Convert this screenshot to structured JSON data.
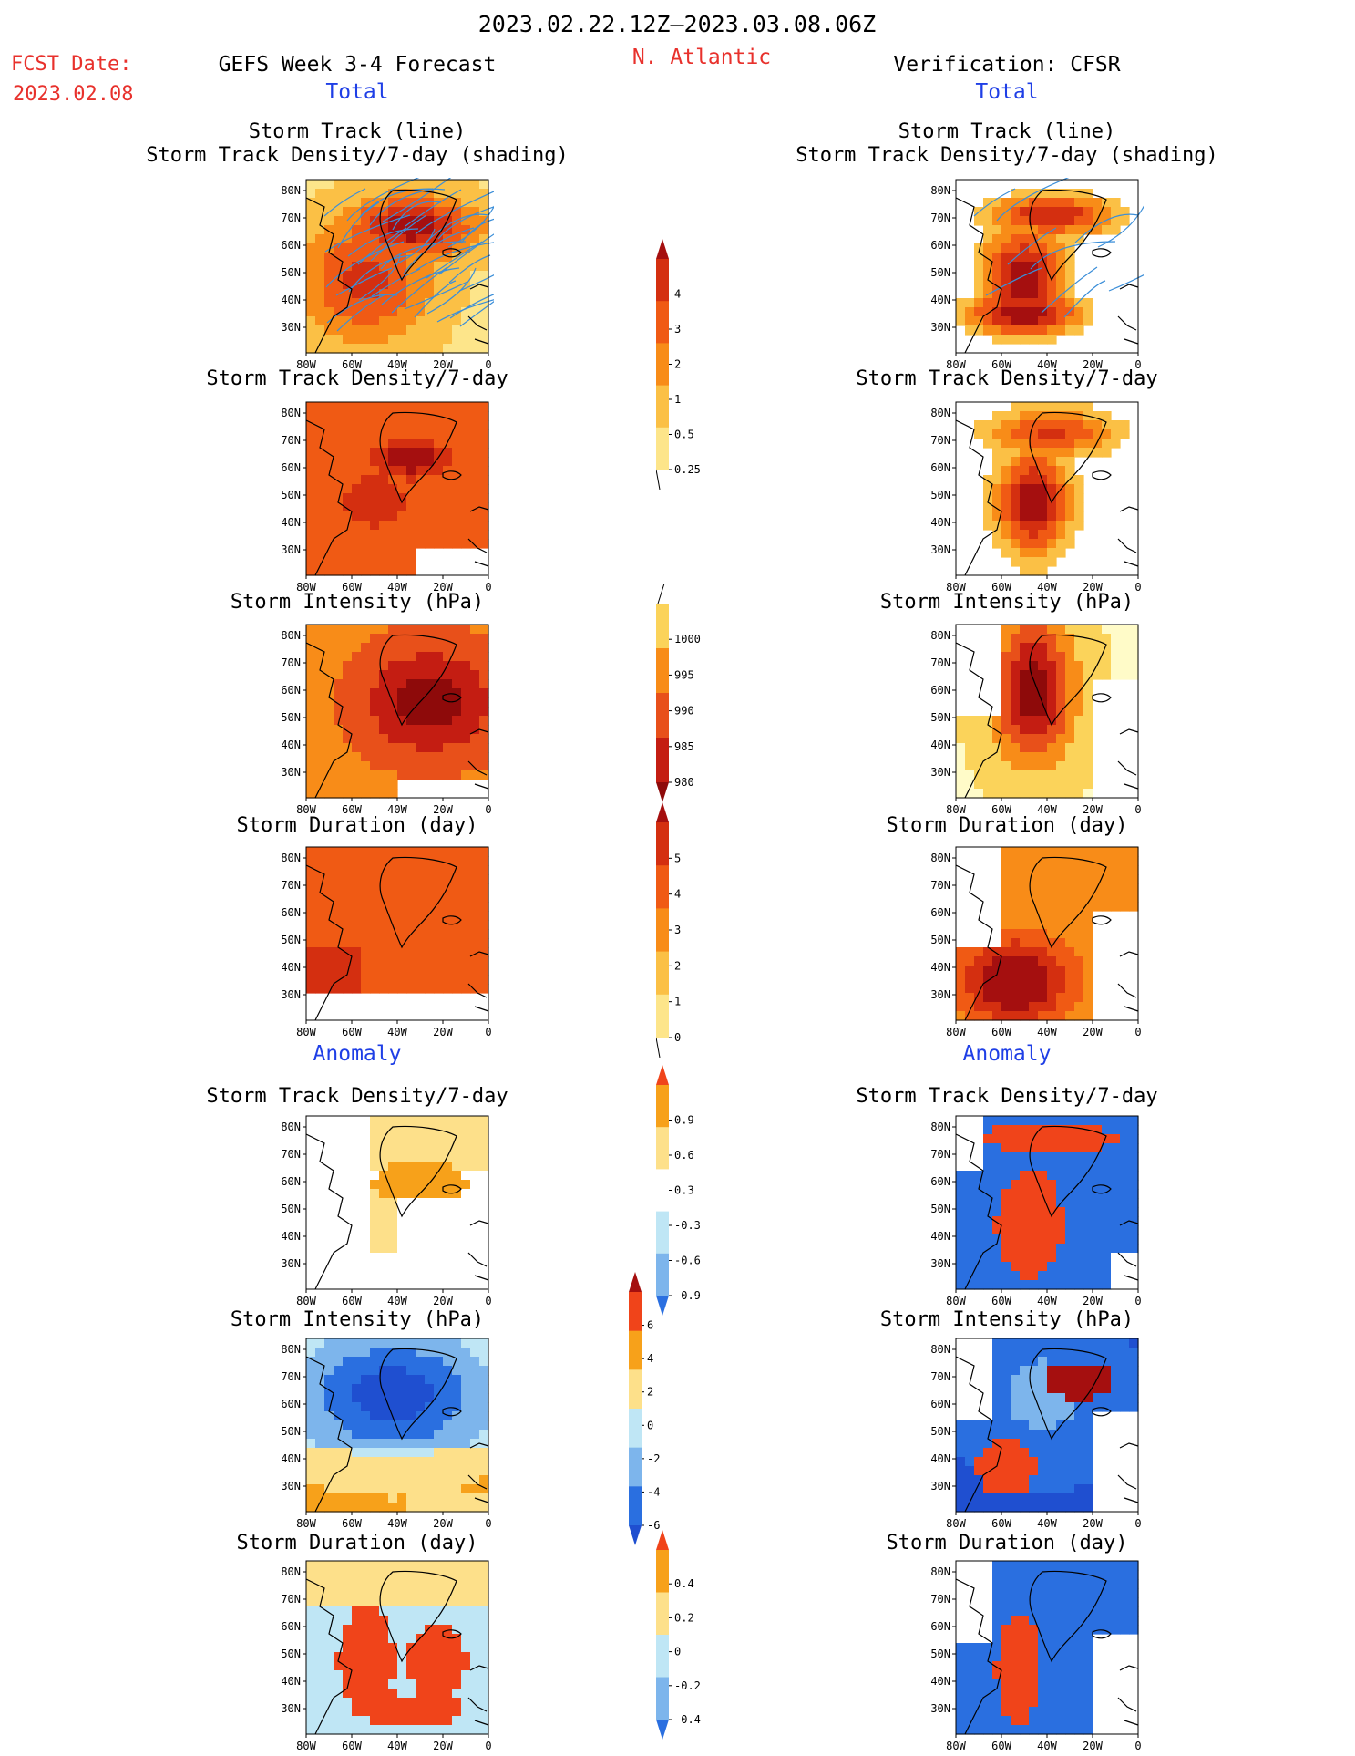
{
  "header": {
    "period": "2023.02.22.12Z–2023.03.08.06Z",
    "fcst_date_label": "FCST Date:",
    "fcst_date_value": "2023.02.08",
    "forecast_title": "GEFS Week 3-4 Forecast",
    "region": "N. Atlantic",
    "verification_title": "Verification: CFSR"
  },
  "sections": {
    "total": "Total",
    "anomaly": "Anomaly"
  },
  "panel_titles": {
    "track_line": "Storm Track (line)",
    "track_shading": "Storm Track Density/7-day (shading)",
    "density": "Storm Track Density/7-day",
    "intensity": "Storm Intensity (hPa)",
    "duration": "Storm Duration (day)"
  },
  "axes": {
    "lat_ticks": [
      "80N",
      "70N",
      "60N",
      "50N",
      "40N",
      "30N"
    ],
    "lon_ticks": [
      "80W",
      "60W",
      "40W",
      "20W",
      "0"
    ]
  },
  "colorbars": {
    "total_density": {
      "labels": [
        "4",
        "3",
        "2",
        "1",
        "0.5",
        "0.25"
      ],
      "colors": [
        "#a50f0f",
        "#d42f10",
        "#f05a14",
        "#f88c18",
        "#fbc045",
        "#fde58a",
        "#fffbc8"
      ]
    },
    "total_intensity": {
      "labels": [
        "1000",
        "995",
        "990",
        "985",
        "980"
      ],
      "colors": [
        "#fffbc8",
        "#fbd35a",
        "#f88c18",
        "#e8501a",
        "#c41d12",
        "#8e0a0a"
      ]
    },
    "total_duration": {
      "labels": [
        "5",
        "4",
        "3",
        "2",
        "1",
        "0"
      ],
      "colors": [
        "#a50f0f",
        "#d42f10",
        "#f05a14",
        "#f88c18",
        "#fbc045",
        "#fde58a",
        "#fffbc8"
      ]
    },
    "anom_density": {
      "labels": [
        "0.9",
        "0.6",
        "0.3",
        "-0.3",
        "-0.6",
        "-0.9"
      ],
      "colors": [
        "#f0441a",
        "#f7a11a",
        "#fde08a",
        "#ffffff",
        "#bfe6f5",
        "#7db5ec",
        "#2a6fe0"
      ]
    },
    "anom_intensity": {
      "labels": [
        "6",
        "4",
        "2",
        "0",
        "-2",
        "-4",
        "-6"
      ],
      "colors": [
        "#a50f0f",
        "#f0441a",
        "#f7a11a",
        "#fde08a",
        "#bfe6f5",
        "#7db5ec",
        "#2a6fe0",
        "#1f4fd0"
      ]
    },
    "anom_duration": {
      "labels": [
        "0.4",
        "0.2",
        "0",
        "-0.2",
        "-0.4"
      ],
      "colors": [
        "#f0441a",
        "#f7a11a",
        "#fde08a",
        "#bfe6f5",
        "#7db5ec",
        "#2a6fe0"
      ]
    }
  }
}
